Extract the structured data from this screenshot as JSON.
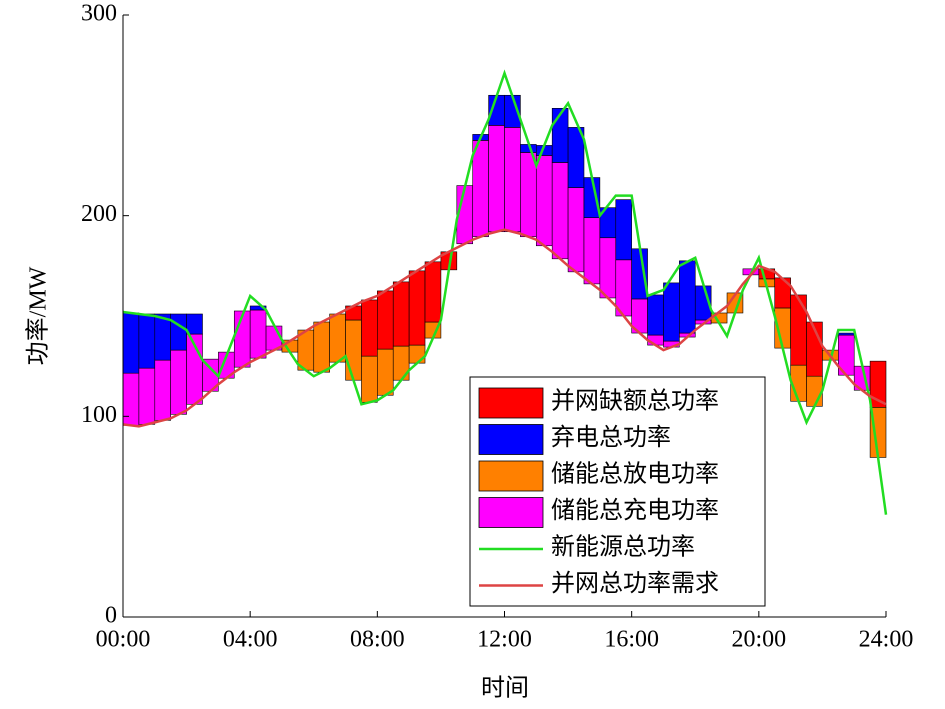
{
  "chart_data": {
    "type": "combo",
    "x_label": "时间",
    "y_label": "功率/MW",
    "x": [
      0,
      0.5,
      1,
      1.5,
      2,
      2.5,
      3,
      3.5,
      4,
      4.5,
      5,
      5.5,
      6,
      6.5,
      7,
      7.5,
      8,
      8.5,
      9,
      9.5,
      10,
      10.5,
      11,
      11.5,
      12,
      12.5,
      13,
      13.5,
      14,
      14.5,
      15,
      15.5,
      16,
      16.5,
      17,
      17.5,
      18,
      18.5,
      19,
      19.5,
      20,
      20.5,
      21,
      21.5,
      22,
      22.5,
      23,
      23.5,
      24
    ],
    "xlim": [
      0,
      24
    ],
    "xticks": [
      {
        "value": 0,
        "label": "00:00"
      },
      {
        "value": 4,
        "label": "04:00"
      },
      {
        "value": 8,
        "label": "08:00"
      },
      {
        "value": 12,
        "label": "12:00"
      },
      {
        "value": 16,
        "label": "16:00"
      },
      {
        "value": 20,
        "label": "20:00"
      },
      {
        "value": 24,
        "label": "24:00"
      }
    ],
    "ylim": [
      0,
      300
    ],
    "yticks": [
      0,
      100,
      200,
      300
    ],
    "bar_series": [
      {
        "name": "并网缺额总功率",
        "color": "#ff0000",
        "values": [
          0,
          0,
          0,
          0,
          0,
          0,
          0,
          0,
          0,
          0,
          0,
          0,
          0,
          0,
          7,
          28,
          29,
          32,
          37,
          30,
          9,
          0,
          0,
          0,
          0,
          0,
          0,
          0,
          0,
          0,
          0,
          0,
          0,
          0,
          0,
          0,
          0,
          0,
          0,
          0,
          5,
          15,
          35,
          27,
          0,
          0,
          0,
          23
        ]
      },
      {
        "name": "弃电总功率",
        "color": "#0000ff",
        "values": [
          30,
          27,
          23,
          18,
          10,
          0,
          0,
          0,
          2,
          0,
          0,
          0,
          0,
          0,
          0,
          0,
          0,
          0,
          0,
          0,
          0,
          0,
          3,
          15,
          16,
          4,
          5,
          27,
          30,
          20,
          15,
          30,
          25,
          20,
          29,
          36,
          17,
          0,
          0,
          0,
          0,
          0,
          0,
          0,
          0,
          1,
          0,
          0
        ]
      },
      {
        "name": "储能总放电功率",
        "color": "#ff8000",
        "values": [
          0,
          0,
          0,
          0,
          0,
          0,
          0,
          0,
          0,
          0,
          6,
          20,
          25,
          24,
          30,
          23,
          23,
          17,
          9,
          8,
          0,
          0,
          0,
          0,
          0,
          0,
          0,
          0,
          0,
          0,
          0,
          0,
          0,
          0,
          0,
          0,
          0,
          5,
          10,
          0,
          4,
          20,
          18,
          15,
          5,
          0,
          0,
          25
        ]
      },
      {
        "name": "储能总充电功率",
        "color": "#ff00ff",
        "values": [
          26,
          28,
          30,
          32,
          35,
          16,
          13,
          28,
          24,
          12,
          0,
          0,
          0,
          0,
          0,
          0,
          0,
          0,
          0,
          0,
          0,
          29,
          48,
          53,
          52,
          42,
          45,
          48,
          42,
          33,
          30,
          28,
          17,
          5,
          3,
          2,
          2,
          0,
          0,
          3,
          0,
          0,
          0,
          0,
          0,
          20,
          12,
          0
        ]
      }
    ],
    "line_series": [
      {
        "name": "新能源总功率",
        "color": "#22dd22",
        "values": [
          152,
          151,
          150,
          148,
          143,
          128,
          120,
          140,
          160,
          153,
          138,
          126,
          120,
          124,
          130,
          106,
          108,
          113,
          123,
          130,
          148,
          198,
          230,
          248,
          271,
          248,
          225,
          245,
          256,
          238,
          200,
          210,
          210,
          160,
          163,
          175,
          179,
          153,
          140,
          163,
          179,
          150,
          118,
          97,
          113,
          143,
          143,
          108,
          51
        ]
      },
      {
        "name": "并网总功率需求",
        "color": "#dd4444",
        "values": [
          96,
          95,
          97,
          99,
          103,
          109,
          116,
          122,
          127,
          131,
          135,
          140,
          145,
          149,
          153,
          157,
          160,
          165,
          170,
          175,
          180,
          184,
          188,
          191,
          193,
          191,
          188,
          182,
          175,
          169,
          163,
          155,
          145,
          138,
          133,
          136,
          143,
          149,
          155,
          166,
          175,
          172,
          165,
          152,
          135,
          125,
          116,
          110,
          106
        ]
      }
    ]
  }
}
